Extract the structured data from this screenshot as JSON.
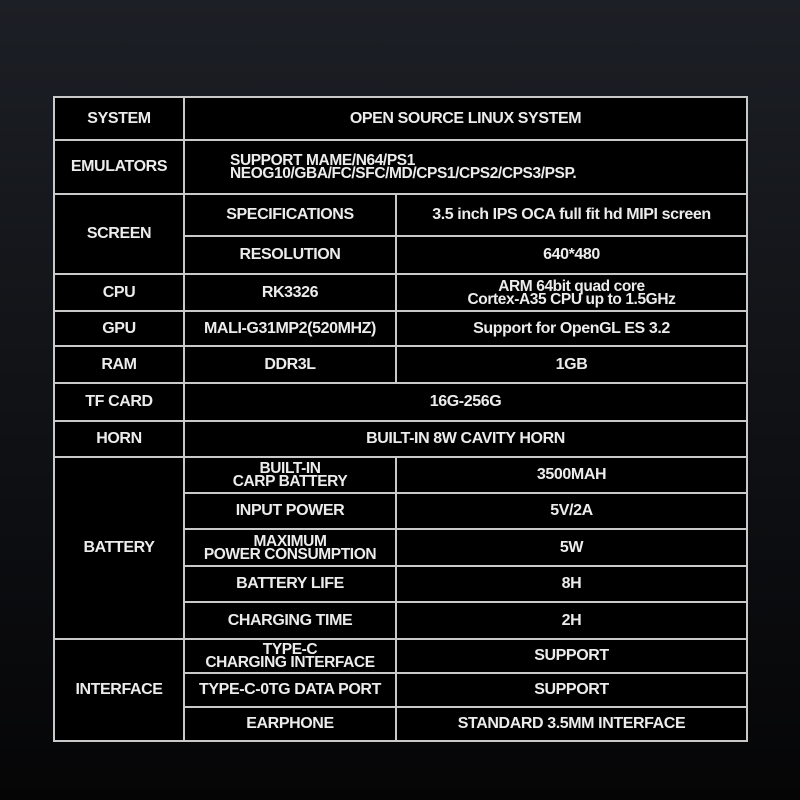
{
  "system": {
    "label": "SYSTEM",
    "value": "OPEN SOURCE LINUX SYSTEM"
  },
  "emulators": {
    "label": "EMULATORS",
    "line1": "SUPPORT MAME/N64/PS1",
    "line2": "NEOG10/GBA/FC/SFC/MD/CPS1/CPS2/CPS3/PSP."
  },
  "screen": {
    "label": "SCREEN",
    "specifications": {
      "label": "SPECIFICATIONS",
      "value": "3.5 inch IPS OCA full fit hd MIPI screen"
    },
    "resolution": {
      "label": "RESOLUTION",
      "value": "640*480"
    }
  },
  "cpu": {
    "label": "CPU",
    "model": "RK3326",
    "line1": "ARM 64bit quad core",
    "line2": "Cortex-A35 CPU up to 1.5GHz"
  },
  "gpu": {
    "label": "GPU",
    "model": "MALI-G31MP2(520MHZ)",
    "value": "Support for OpenGL ES 3.2"
  },
  "ram": {
    "label": "RAM",
    "model": "DDR3L",
    "value": "1GB"
  },
  "tf_card": {
    "label": "TF CARD",
    "value": "16G-256G"
  },
  "horn": {
    "label": "HORN",
    "value": "BUILT-IN 8W CAVITY HORN"
  },
  "battery": {
    "label": "BATTERY",
    "rows": [
      {
        "line1": "BUILT-IN",
        "line2": "CARP BATTERY",
        "value": "3500MAH"
      },
      {
        "line1": "INPUT POWER",
        "line2": "",
        "value": "5V/2A"
      },
      {
        "line1": "MAXIMUM",
        "line2": "POWER CONSUMPTION",
        "value": "5W"
      },
      {
        "line1": "BATTERY LIFE",
        "line2": "",
        "value": "8H"
      },
      {
        "line1": "CHARGING TIME",
        "line2": "",
        "value": "2H"
      }
    ]
  },
  "interface": {
    "label": "INTERFACE",
    "rows": [
      {
        "line1": "TYPE-C",
        "line2": "CHARGING INTERFACE",
        "value": "SUPPORT"
      },
      {
        "line1": "TYPE-C-0TG DATA PORT",
        "line2": "",
        "value": "SUPPORT"
      },
      {
        "line1": "EARPHONE",
        "line2": "",
        "value": "STANDARD 3.5MM INTERFACE"
      }
    ]
  }
}
